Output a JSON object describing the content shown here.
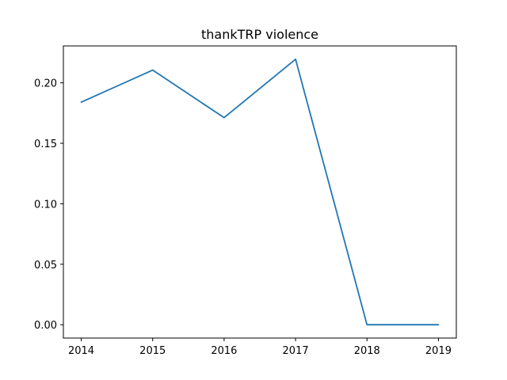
{
  "chart_data": {
    "type": "line",
    "title": "thankTRP violence",
    "xlabel": "",
    "ylabel": "",
    "x": [
      2014,
      2015,
      2016,
      2017,
      2018,
      2019
    ],
    "series": [
      {
        "values": [
          0.184,
          0.2105,
          0.1712,
          0.2195,
          0.0,
          0.0
        ]
      }
    ],
    "xlim": [
      2013.75,
      2019.25
    ],
    "ylim": [
      -0.011,
      0.2305
    ],
    "x_ticks": [
      "2014",
      "2015",
      "2016",
      "2017",
      "2018",
      "2019"
    ],
    "y_ticks": [
      "0.00",
      "0.05",
      "0.10",
      "0.15",
      "0.20"
    ],
    "y_tick_values": [
      0.0,
      0.05,
      0.1,
      0.15,
      0.2
    ],
    "grid": false,
    "legend": "none",
    "colors": {
      "series": "#1f77b4",
      "axes": "#000000"
    }
  }
}
